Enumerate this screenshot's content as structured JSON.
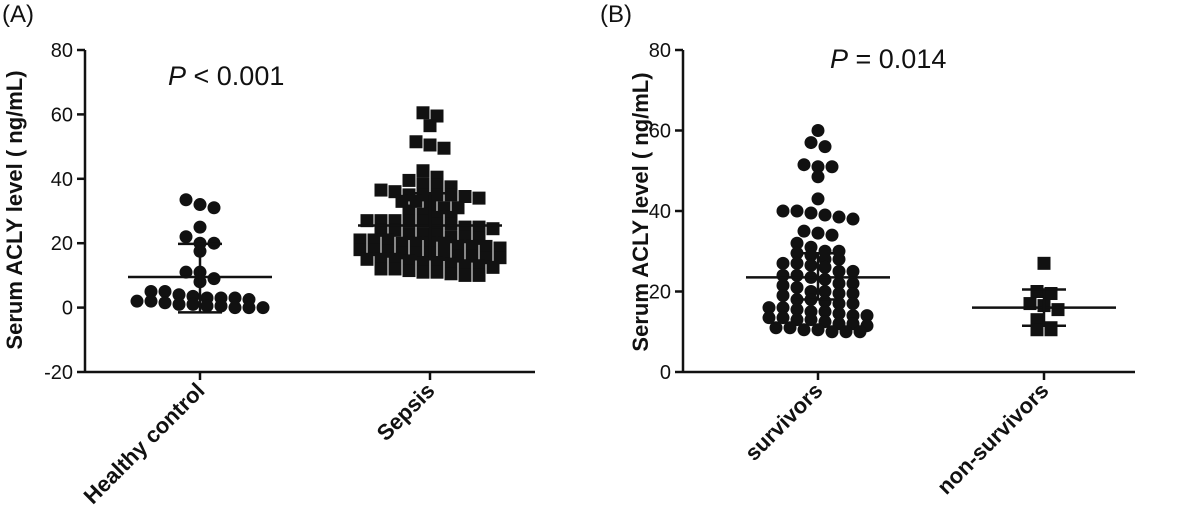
{
  "figure_panels": [
    "(A)",
    "(B)"
  ],
  "chart_data": [
    {
      "type": "scatter",
      "panel_label": "(A)",
      "ylabel": "Serum ACLY level ( ng/mL)",
      "xlabel": "",
      "ylim": [
        -20,
        80
      ],
      "yticks": [
        -20,
        0,
        20,
        40,
        60,
        80
      ],
      "categories": [
        "Healthy control",
        "Sepsis"
      ],
      "annotation": {
        "italic": "P",
        "rest": " < 0.001"
      },
      "grid": false,
      "series": [
        {
          "category": "Healthy control",
          "marker": "circle",
          "values": [
            33.5,
            32,
            31,
            25,
            22,
            20,
            20,
            17.5,
            11,
            11,
            9,
            8,
            5,
            5,
            4,
            3.5,
            3,
            3,
            2.5,
            2,
            2,
            1.5,
            1,
            1,
            0.5,
            0.5,
            0,
            0,
            0,
            3
          ],
          "mean": 9.5,
          "sd_low": -1.5,
          "sd_high": 19.8
        },
        {
          "category": "Sepsis",
          "marker": "square",
          "values": [
            60.5,
            59.5,
            56.5,
            51.5,
            50.5,
            49.5,
            42.5,
            40.5,
            39.5,
            38.5,
            38,
            37.5,
            36.5,
            36,
            35,
            35,
            35,
            35,
            34.5,
            34,
            33,
            33,
            32,
            31,
            31,
            30,
            29,
            28,
            28,
            27,
            27,
            27,
            27,
            27,
            26,
            26,
            25,
            25,
            24.5,
            24,
            24,
            23,
            23,
            22.5,
            22,
            22,
            21.5,
            21,
            21,
            21,
            20,
            20,
            20,
            20,
            19,
            19,
            19,
            18.5,
            18,
            18,
            17.5,
            17,
            17,
            17,
            16.5,
            16,
            16,
            15.5,
            15.5,
            15,
            15,
            15,
            14.5,
            14,
            14,
            13.5,
            13,
            13,
            12.5,
            12,
            12,
            11.5,
            11,
            11,
            10.5,
            10,
            10
          ],
          "mean": 25.5,
          "sd_low": 15.0,
          "sd_high": 35.5
        }
      ]
    },
    {
      "type": "scatter",
      "panel_label": "(B)",
      "ylabel": "Serum ACLY level ( ng/mL)",
      "xlabel": "",
      "ylim": [
        0,
        80
      ],
      "yticks": [
        0,
        20,
        40,
        60,
        80
      ],
      "categories": [
        "survivors",
        "non-survivors"
      ],
      "annotation": {
        "italic": "P",
        "rest": " =  0.014"
      },
      "grid": false,
      "series": [
        {
          "category": "survivors",
          "marker": "circle",
          "values": [
            60,
            57,
            56,
            51.5,
            51,
            51,
            48.5,
            43,
            40,
            40,
            39.5,
            39,
            38.5,
            38,
            35,
            34.5,
            34,
            32,
            31,
            30,
            30,
            29.5,
            29,
            28,
            28,
            27,
            27,
            26.5,
            26,
            25,
            25,
            24,
            24,
            23.5,
            23,
            22,
            22,
            21.5,
            21,
            20,
            20,
            19.5,
            19.5,
            19,
            18,
            18,
            17.5,
            17,
            17,
            16,
            16,
            15.5,
            15,
            15,
            14.5,
            14,
            14,
            13.5,
            13.5,
            13,
            13,
            12.5,
            12,
            12,
            11.5,
            11,
            11,
            10.5,
            10.5,
            10,
            10,
            10
          ],
          "mean": 23.5,
          "sd_low": 18.0,
          "sd_high": 29.5
        },
        {
          "category": "non-survivors",
          "marker": "square",
          "values": [
            27,
            20,
            19.5,
            17,
            16.5,
            15.5,
            13,
            11,
            10.5,
            10.5
          ],
          "mean": 16.0,
          "sd_low": 11.5,
          "sd_high": 20.5
        }
      ]
    }
  ]
}
